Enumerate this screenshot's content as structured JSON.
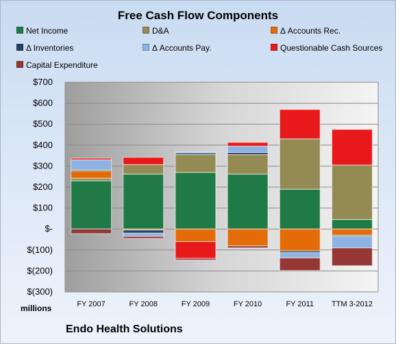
{
  "chart_data": {
    "type": "bar",
    "stacked": true,
    "title": "Free Cash Flow Components",
    "company": "Endo Health Solutions",
    "unit_label": "millions",
    "categories": [
      "FY 2007",
      "FY 2008",
      "FY 2009",
      "FY 2010",
      "FY 2011",
      "TTM 3-2012"
    ],
    "ylim": [
      -300,
      700
    ],
    "yticks": [
      -300,
      -200,
      -100,
      0,
      100,
      200,
      300,
      400,
      500,
      600,
      700
    ],
    "ytick_labels": [
      "$(300)",
      "$(200)",
      "$(100)",
      "$-",
      "$100",
      "$200",
      "$300",
      "$400",
      "$500",
      "$600",
      "$700"
    ],
    "grid": true,
    "legend_position": "top",
    "series": [
      {
        "name": "Net Income",
        "color": "#1f7a45",
        "values": [
          230,
          262,
          270,
          262,
          190,
          45
        ]
      },
      {
        "name": "D&A",
        "color": "#948a54",
        "values": [
          12,
          45,
          85,
          93,
          240,
          260
        ]
      },
      {
        "name": "Δ Accounts Rec.",
        "color": "#e36c09",
        "values": [
          35,
          -5,
          -60,
          -80,
          -105,
          -30
        ]
      },
      {
        "name": "Δ Inventories",
        "color": "#254061",
        "values": [
          5,
          -15,
          8,
          10,
          -8,
          -5
        ]
      },
      {
        "name": "Δ Accounts Pay.",
        "color": "#8db3e2",
        "values": [
          48,
          -15,
          5,
          30,
          -25,
          -55
        ]
      },
      {
        "name": "Questionable Cash Sources",
        "color": "#e8191a",
        "values": [
          8,
          35,
          -80,
          18,
          140,
          170
        ]
      },
      {
        "name": "Capital Expenditure",
        "color": "#953735",
        "values": [
          -22,
          -10,
          -8,
          -10,
          -60,
          -85
        ]
      }
    ]
  }
}
